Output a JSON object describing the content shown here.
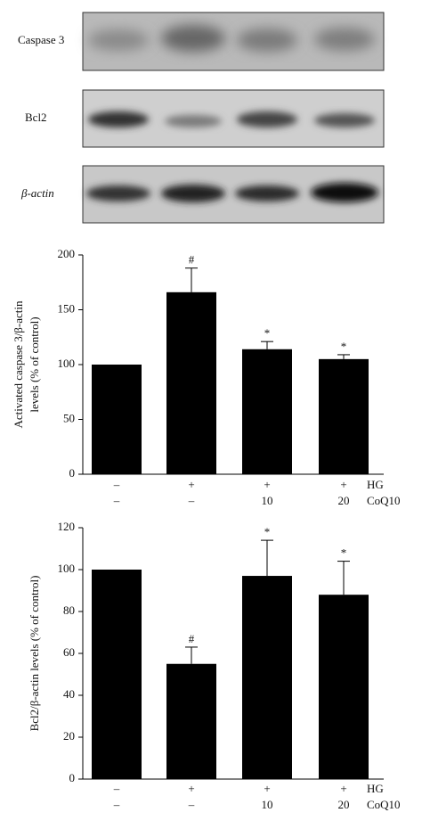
{
  "blots": {
    "labels": [
      "Caspase 3",
      "Bcl2",
      "β-actin"
    ]
  },
  "chart_data": [
    {
      "type": "bar",
      "ylabel": [
        "Activated caspase 3/β-actin",
        "levels (% of control)"
      ],
      "values": [
        100,
        166,
        114,
        105
      ],
      "errors": [
        0,
        22,
        7,
        4
      ],
      "annotations": [
        null,
        "#",
        "*",
        "*"
      ],
      "color": "#000000",
      "ylim": [
        0,
        200
      ],
      "yticks": [
        0,
        50,
        100,
        150,
        200
      ],
      "condition_rows": [
        {
          "name": "HG",
          "labels": [
            "–",
            "+",
            "+",
            "+"
          ]
        },
        {
          "name": "CoQ10",
          "labels": [
            "–",
            "–",
            "10",
            "20"
          ]
        }
      ]
    },
    {
      "type": "bar",
      "ylabel": [
        "Bcl2/β-actin levels (% of control)"
      ],
      "values": [
        100,
        55,
        97,
        88
      ],
      "errors": [
        0,
        8,
        17,
        16
      ],
      "annotations": [
        null,
        "#",
        "*",
        "*"
      ],
      "color": "#000000",
      "ylim": [
        0,
        120
      ],
      "yticks": [
        0,
        20,
        40,
        60,
        80,
        100,
        120
      ],
      "condition_rows": [
        {
          "name": "HG",
          "labels": [
            "–",
            "+",
            "+",
            "+"
          ]
        },
        {
          "name": "CoQ10",
          "labels": [
            "–",
            "–",
            "10",
            "20"
          ]
        }
      ]
    }
  ]
}
